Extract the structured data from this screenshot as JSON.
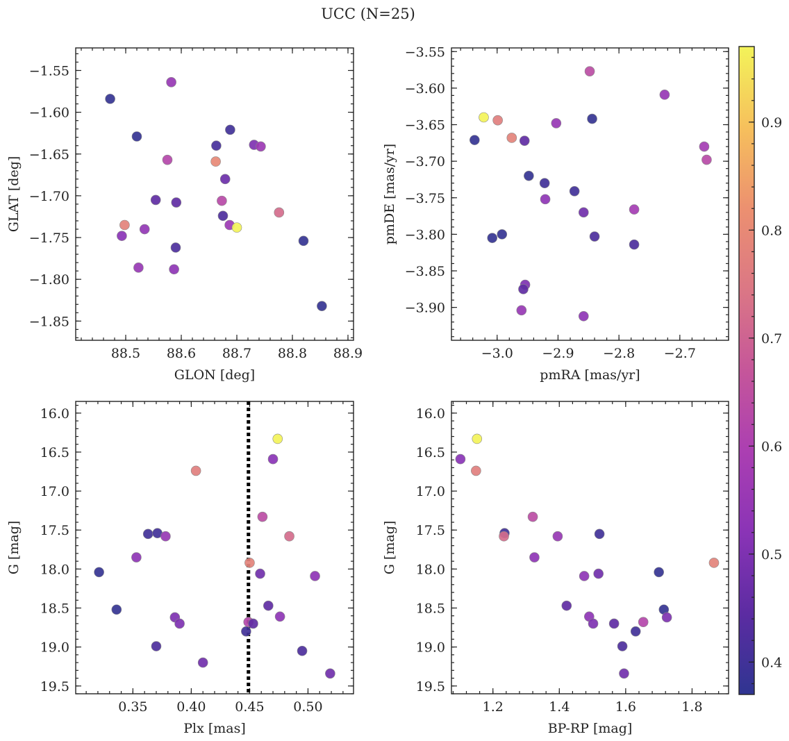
{
  "figure": {
    "suptitle": "UCC (N=25)"
  },
  "colorbar": {
    "min": 0.37,
    "max": 0.97,
    "ticks": [
      0.4,
      0.5,
      0.6,
      0.7,
      0.8,
      0.9
    ],
    "tick_labels": [
      "0.4",
      "0.5",
      "0.6",
      "0.7",
      "0.8",
      "0.9"
    ],
    "colormap": "plasma",
    "stops": [
      "#2f3591",
      "#5c2ca2",
      "#8a34b6",
      "#ab3fb2",
      "#c5569a",
      "#db7785",
      "#ec9070",
      "#f6c05c",
      "#f3f35a"
    ]
  },
  "chart_data": [
    {
      "id": "glon-glat",
      "type": "scatter",
      "xlabel": "GLON [deg]",
      "ylabel": "GLAT [deg]",
      "xlim": [
        88.41,
        88.91
      ],
      "ylim": [
        -1.873,
        -1.523
      ],
      "y_inverted": false,
      "xticks": [
        88.5,
        88.6,
        88.7,
        88.8,
        88.9
      ],
      "xtick_labels": [
        "88.5",
        "88.6",
        "88.7",
        "88.8",
        "88.9"
      ],
      "yticks": [
        -1.55,
        -1.6,
        -1.65,
        -1.7,
        -1.75,
        -1.8,
        -1.85
      ],
      "ytick_labels": [
        "−1.55",
        "−1.60",
        "−1.65",
        "−1.70",
        "−1.75",
        "−1.80",
        "−1.85"
      ],
      "points": [
        {
          "x": 88.472,
          "y": -1.584,
          "c": 0.38
        },
        {
          "x": 88.582,
          "y": -1.564,
          "c": 0.55
        },
        {
          "x": 88.52,
          "y": -1.629,
          "c": 0.38
        },
        {
          "x": 88.688,
          "y": -1.621,
          "c": 0.4
        },
        {
          "x": 88.663,
          "y": -1.64,
          "c": 0.41
        },
        {
          "x": 88.731,
          "y": -1.639,
          "c": 0.5
        },
        {
          "x": 88.743,
          "y": -1.641,
          "c": 0.56
        },
        {
          "x": 88.575,
          "y": -1.657,
          "c": 0.62
        },
        {
          "x": 88.662,
          "y": -1.659,
          "c": 0.8
        },
        {
          "x": 88.679,
          "y": -1.68,
          "c": 0.47
        },
        {
          "x": 88.554,
          "y": -1.705,
          "c": 0.45
        },
        {
          "x": 88.591,
          "y": -1.708,
          "c": 0.45
        },
        {
          "x": 88.673,
          "y": -1.706,
          "c": 0.63
        },
        {
          "x": 88.776,
          "y": -1.72,
          "c": 0.72
        },
        {
          "x": 88.675,
          "y": -1.724,
          "c": 0.42
        },
        {
          "x": 88.498,
          "y": -1.735,
          "c": 0.78
        },
        {
          "x": 88.687,
          "y": -1.735,
          "c": 0.56
        },
        {
          "x": 88.7,
          "y": -1.738,
          "c": 0.97
        },
        {
          "x": 88.534,
          "y": -1.74,
          "c": 0.54
        },
        {
          "x": 88.493,
          "y": -1.748,
          "c": 0.52
        },
        {
          "x": 88.82,
          "y": -1.754,
          "c": 0.38
        },
        {
          "x": 88.59,
          "y": -1.762,
          "c": 0.42
        },
        {
          "x": 88.523,
          "y": -1.786,
          "c": 0.55
        },
        {
          "x": 88.587,
          "y": -1.788,
          "c": 0.53
        },
        {
          "x": 88.853,
          "y": -1.832,
          "c": 0.38
        }
      ]
    },
    {
      "id": "pmra-pmde",
      "type": "scatter",
      "xlabel": "pmRA [mas/yr]",
      "ylabel": "pmDE [mas/yr]",
      "xlim": [
        -3.075,
        -2.62
      ],
      "ylim": [
        -3.945,
        -3.545
      ],
      "y_inverted": false,
      "xticks": [
        -3.0,
        -2.9,
        -2.8,
        -2.7
      ],
      "xtick_labels": [
        "−3.0",
        "−2.9",
        "−2.8",
        "−2.7"
      ],
      "yticks": [
        -3.55,
        -3.6,
        -3.65,
        -3.7,
        -3.75,
        -3.8,
        -3.85,
        -3.9
      ],
      "ytick_labels": [
        "−3.55",
        "−3.60",
        "−3.65",
        "−3.70",
        "−3.75",
        "−3.80",
        "−3.85",
        "−3.90"
      ],
      "points": [
        {
          "x": -2.848,
          "y": -3.577,
          "c": 0.64
        },
        {
          "x": -2.725,
          "y": -3.609,
          "c": 0.55
        },
        {
          "x": -3.022,
          "y": -3.64,
          "c": 0.97
        },
        {
          "x": -2.999,
          "y": -3.644,
          "c": 0.77
        },
        {
          "x": -2.844,
          "y": -3.642,
          "c": 0.38
        },
        {
          "x": -2.903,
          "y": -3.648,
          "c": 0.55
        },
        {
          "x": -2.976,
          "y": -3.668,
          "c": 0.78
        },
        {
          "x": -3.037,
          "y": -3.671,
          "c": 0.38
        },
        {
          "x": -2.955,
          "y": -3.672,
          "c": 0.45
        },
        {
          "x": -2.66,
          "y": -3.68,
          "c": 0.58
        },
        {
          "x": -2.656,
          "y": -3.698,
          "c": 0.63
        },
        {
          "x": -2.948,
          "y": -3.72,
          "c": 0.38
        },
        {
          "x": -2.922,
          "y": -3.73,
          "c": 0.4
        },
        {
          "x": -2.873,
          "y": -3.741,
          "c": 0.4
        },
        {
          "x": -2.921,
          "y": -3.752,
          "c": 0.53
        },
        {
          "x": -2.775,
          "y": -3.766,
          "c": 0.58
        },
        {
          "x": -2.858,
          "y": -3.77,
          "c": 0.48
        },
        {
          "x": -2.84,
          "y": -3.803,
          "c": 0.42
        },
        {
          "x": -2.775,
          "y": -3.814,
          "c": 0.42
        },
        {
          "x": -2.992,
          "y": -3.8,
          "c": 0.38
        },
        {
          "x": -3.008,
          "y": -3.805,
          "c": 0.38
        },
        {
          "x": -2.954,
          "y": -3.869,
          "c": 0.5
        },
        {
          "x": -2.957,
          "y": -3.875,
          "c": 0.45
        },
        {
          "x": -2.96,
          "y": -3.904,
          "c": 0.55
        },
        {
          "x": -2.858,
          "y": -3.912,
          "c": 0.53
        }
      ]
    },
    {
      "id": "plx-g",
      "type": "scatter",
      "xlabel": "Plx [mas]",
      "ylabel": "G [mag]",
      "xlim": [
        0.301,
        0.539
      ],
      "ylim": [
        19.6,
        15.85
      ],
      "y_inverted": true,
      "xticks": [
        0.35,
        0.4,
        0.45,
        0.5
      ],
      "xtick_labels": [
        "0.35",
        "0.40",
        "0.45",
        "0.50"
      ],
      "yticks": [
        16.0,
        16.5,
        17.0,
        17.5,
        18.0,
        18.5,
        19.0,
        19.5
      ],
      "ytick_labels": [
        "16.0",
        "16.5",
        "17.0",
        "17.5",
        "18.0",
        "18.5",
        "19.0",
        "19.5"
      ],
      "vline": {
        "x": 0.449,
        "style": "dotted"
      },
      "points": [
        {
          "x": 0.474,
          "y": 16.33,
          "c": 0.97
        },
        {
          "x": 0.47,
          "y": 16.59,
          "c": 0.52
        },
        {
          "x": 0.404,
          "y": 16.74,
          "c": 0.77
        },
        {
          "x": 0.461,
          "y": 17.33,
          "c": 0.64
        },
        {
          "x": 0.363,
          "y": 17.55,
          "c": 0.4
        },
        {
          "x": 0.371,
          "y": 17.54,
          "c": 0.4
        },
        {
          "x": 0.378,
          "y": 17.58,
          "c": 0.55
        },
        {
          "x": 0.484,
          "y": 17.58,
          "c": 0.72
        },
        {
          "x": 0.353,
          "y": 17.85,
          "c": 0.53
        },
        {
          "x": 0.45,
          "y": 17.92,
          "c": 0.78
        },
        {
          "x": 0.321,
          "y": 18.04,
          "c": 0.38
        },
        {
          "x": 0.459,
          "y": 18.06,
          "c": 0.48
        },
        {
          "x": 0.506,
          "y": 18.09,
          "c": 0.53
        },
        {
          "x": 0.336,
          "y": 18.52,
          "c": 0.38
        },
        {
          "x": 0.466,
          "y": 18.47,
          "c": 0.45
        },
        {
          "x": 0.386,
          "y": 18.62,
          "c": 0.5
        },
        {
          "x": 0.476,
          "y": 18.61,
          "c": 0.53
        },
        {
          "x": 0.39,
          "y": 18.7,
          "c": 0.5
        },
        {
          "x": 0.449,
          "y": 18.68,
          "c": 0.62
        },
        {
          "x": 0.453,
          "y": 18.7,
          "c": 0.45
        },
        {
          "x": 0.447,
          "y": 18.8,
          "c": 0.4
        },
        {
          "x": 0.37,
          "y": 18.99,
          "c": 0.42
        },
        {
          "x": 0.495,
          "y": 19.05,
          "c": 0.42
        },
        {
          "x": 0.41,
          "y": 19.2,
          "c": 0.48
        },
        {
          "x": 0.519,
          "y": 19.34,
          "c": 0.48
        }
      ]
    },
    {
      "id": "bprp-g",
      "type": "scatter",
      "xlabel": "BP-RP [mag]",
      "ylabel": "G [mag]",
      "xlim": [
        1.075,
        1.91
      ],
      "ylim": [
        19.6,
        15.85
      ],
      "y_inverted": true,
      "xticks": [
        1.2,
        1.4,
        1.6,
        1.8
      ],
      "xtick_labels": [
        "1.2",
        "1.4",
        "1.6",
        "1.8"
      ],
      "yticks": [
        16.0,
        16.5,
        17.0,
        17.5,
        18.0,
        18.5,
        19.0,
        19.5
      ],
      "ytick_labels": [
        "16.0",
        "16.5",
        "17.0",
        "17.5",
        "18.0",
        "18.5",
        "19.0",
        "19.5"
      ],
      "points": [
        {
          "x": 1.152,
          "y": 16.33,
          "c": 0.97
        },
        {
          "x": 1.102,
          "y": 16.59,
          "c": 0.52
        },
        {
          "x": 1.149,
          "y": 16.74,
          "c": 0.77
        },
        {
          "x": 1.32,
          "y": 17.33,
          "c": 0.64
        },
        {
          "x": 1.235,
          "y": 17.54,
          "c": 0.4
        },
        {
          "x": 1.521,
          "y": 17.55,
          "c": 0.4
        },
        {
          "x": 1.233,
          "y": 17.58,
          "c": 0.72
        },
        {
          "x": 1.395,
          "y": 17.58,
          "c": 0.55
        },
        {
          "x": 1.325,
          "y": 17.85,
          "c": 0.53
        },
        {
          "x": 1.866,
          "y": 17.92,
          "c": 0.78
        },
        {
          "x": 1.7,
          "y": 18.04,
          "c": 0.38
        },
        {
          "x": 1.518,
          "y": 18.06,
          "c": 0.48
        },
        {
          "x": 1.475,
          "y": 18.09,
          "c": 0.53
        },
        {
          "x": 1.422,
          "y": 18.47,
          "c": 0.45
        },
        {
          "x": 1.715,
          "y": 18.52,
          "c": 0.38
        },
        {
          "x": 1.49,
          "y": 18.61,
          "c": 0.53
        },
        {
          "x": 1.724,
          "y": 18.62,
          "c": 0.5
        },
        {
          "x": 1.653,
          "y": 18.68,
          "c": 0.62
        },
        {
          "x": 1.565,
          "y": 18.7,
          "c": 0.45
        },
        {
          "x": 1.502,
          "y": 18.7,
          "c": 0.5
        },
        {
          "x": 1.63,
          "y": 18.8,
          "c": 0.4
        },
        {
          "x": 1.59,
          "y": 18.99,
          "c": 0.42
        },
        {
          "x": 1.595,
          "y": 19.34,
          "c": 0.48
        }
      ]
    }
  ]
}
